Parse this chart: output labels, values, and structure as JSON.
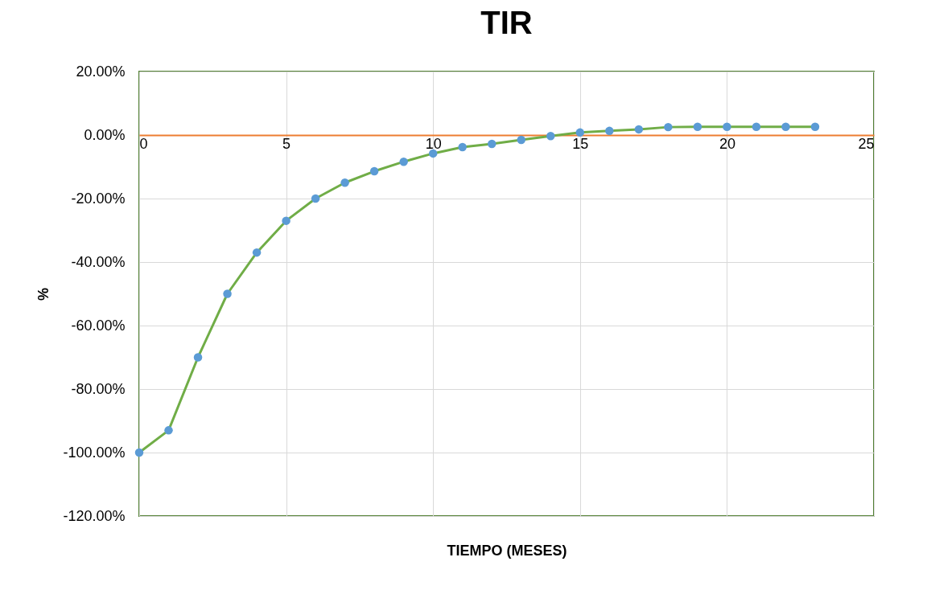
{
  "chart_data": {
    "type": "line",
    "title": "TIR",
    "xlabel": "TIEMPO (MESES)",
    "ylabel": "%",
    "x": [
      0,
      1,
      2,
      3,
      4,
      5,
      6,
      7,
      8,
      9,
      10,
      11,
      12,
      13,
      14,
      15,
      16,
      17,
      18,
      19,
      20,
      21,
      22,
      23
    ],
    "series": [
      {
        "color": "#70ad47",
        "values": [
          -100,
          -93,
          -70,
          -50,
          -37,
          -27,
          -20,
          -15,
          -11.4,
          -8.4,
          -5.8,
          -3.8,
          -2.8,
          -1.5,
          -0.3,
          0.8,
          1.3,
          1.8,
          2.5,
          2.6,
          2.6,
          2.6,
          2.6,
          2.6
        ]
      }
    ],
    "xlim": [
      0,
      25
    ],
    "xticks": [
      0,
      5,
      10,
      15,
      20,
      25
    ],
    "ylim": [
      -120,
      20
    ],
    "yticks": [
      {
        "value": 20,
        "label": "20.00%"
      },
      {
        "value": 0,
        "label": "0.00%"
      },
      {
        "value": -20,
        "label": "-20.00%"
      },
      {
        "value": -40,
        "label": "-40.00%"
      },
      {
        "value": -60,
        "label": "-60.00%"
      },
      {
        "value": -80,
        "label": "-80.00%"
      },
      {
        "value": -100,
        "label": "-100.00%"
      },
      {
        "value": -120,
        "label": "-120.00%"
      }
    ],
    "grid": true,
    "marker": "circle",
    "line_style": "solid"
  }
}
